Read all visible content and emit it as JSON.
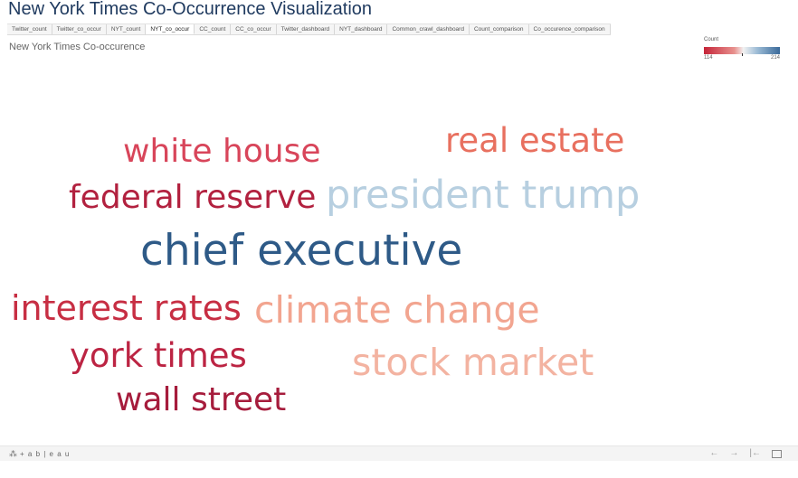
{
  "header": {
    "title": "New York Times Co-Occurrence Visualization"
  },
  "tabs": [
    {
      "label": "Twitter_count",
      "active": false
    },
    {
      "label": "Twitter_co_occur",
      "active": false
    },
    {
      "label": "NYT_count",
      "active": false
    },
    {
      "label": "NYT_co_occur",
      "active": true
    },
    {
      "label": "CC_count",
      "active": false
    },
    {
      "label": "CC_co_occur",
      "active": false
    },
    {
      "label": "Twitter_dashboard",
      "active": false
    },
    {
      "label": "NYT_dashboard",
      "active": false
    },
    {
      "label": "Common_crawl_dashboard",
      "active": false
    },
    {
      "label": "Count_comparison",
      "active": false
    },
    {
      "label": "Co_occurence_comparison",
      "active": false
    }
  ],
  "sheet": {
    "title": "New York Times Co-occurence"
  },
  "legend": {
    "title": "Count",
    "min": "114",
    "max": "214",
    "colors": [
      "#c52438",
      "#e8918e",
      "#f2f2f2",
      "#9dbcd6",
      "#3a6a9a"
    ]
  },
  "words": [
    {
      "text": "white house",
      "color": "#d8455a"
    },
    {
      "text": "real estate",
      "color": "#e8705f"
    },
    {
      "text": "federal reserve",
      "color": "#b2213f"
    },
    {
      "text": "president trump",
      "color": "#b7cfe0"
    },
    {
      "text": "chief executive",
      "color": "#2e5a87"
    },
    {
      "text": "interest rates",
      "color": "#c72e43"
    },
    {
      "text": "climate change",
      "color": "#f2a590"
    },
    {
      "text": "york times",
      "color": "#bc2443"
    },
    {
      "text": "stock market",
      "color": "#f3b3a1"
    },
    {
      "text": "wall street",
      "color": "#a61c3c"
    }
  ],
  "footer": {
    "logo_text": "+ a b | e a u",
    "logo_icon": "tableau-logo-icon",
    "controls": {
      "undo": "←",
      "redo": "→",
      "revert": "|←",
      "fullscreen_icon": "fullscreen-icon"
    }
  }
}
